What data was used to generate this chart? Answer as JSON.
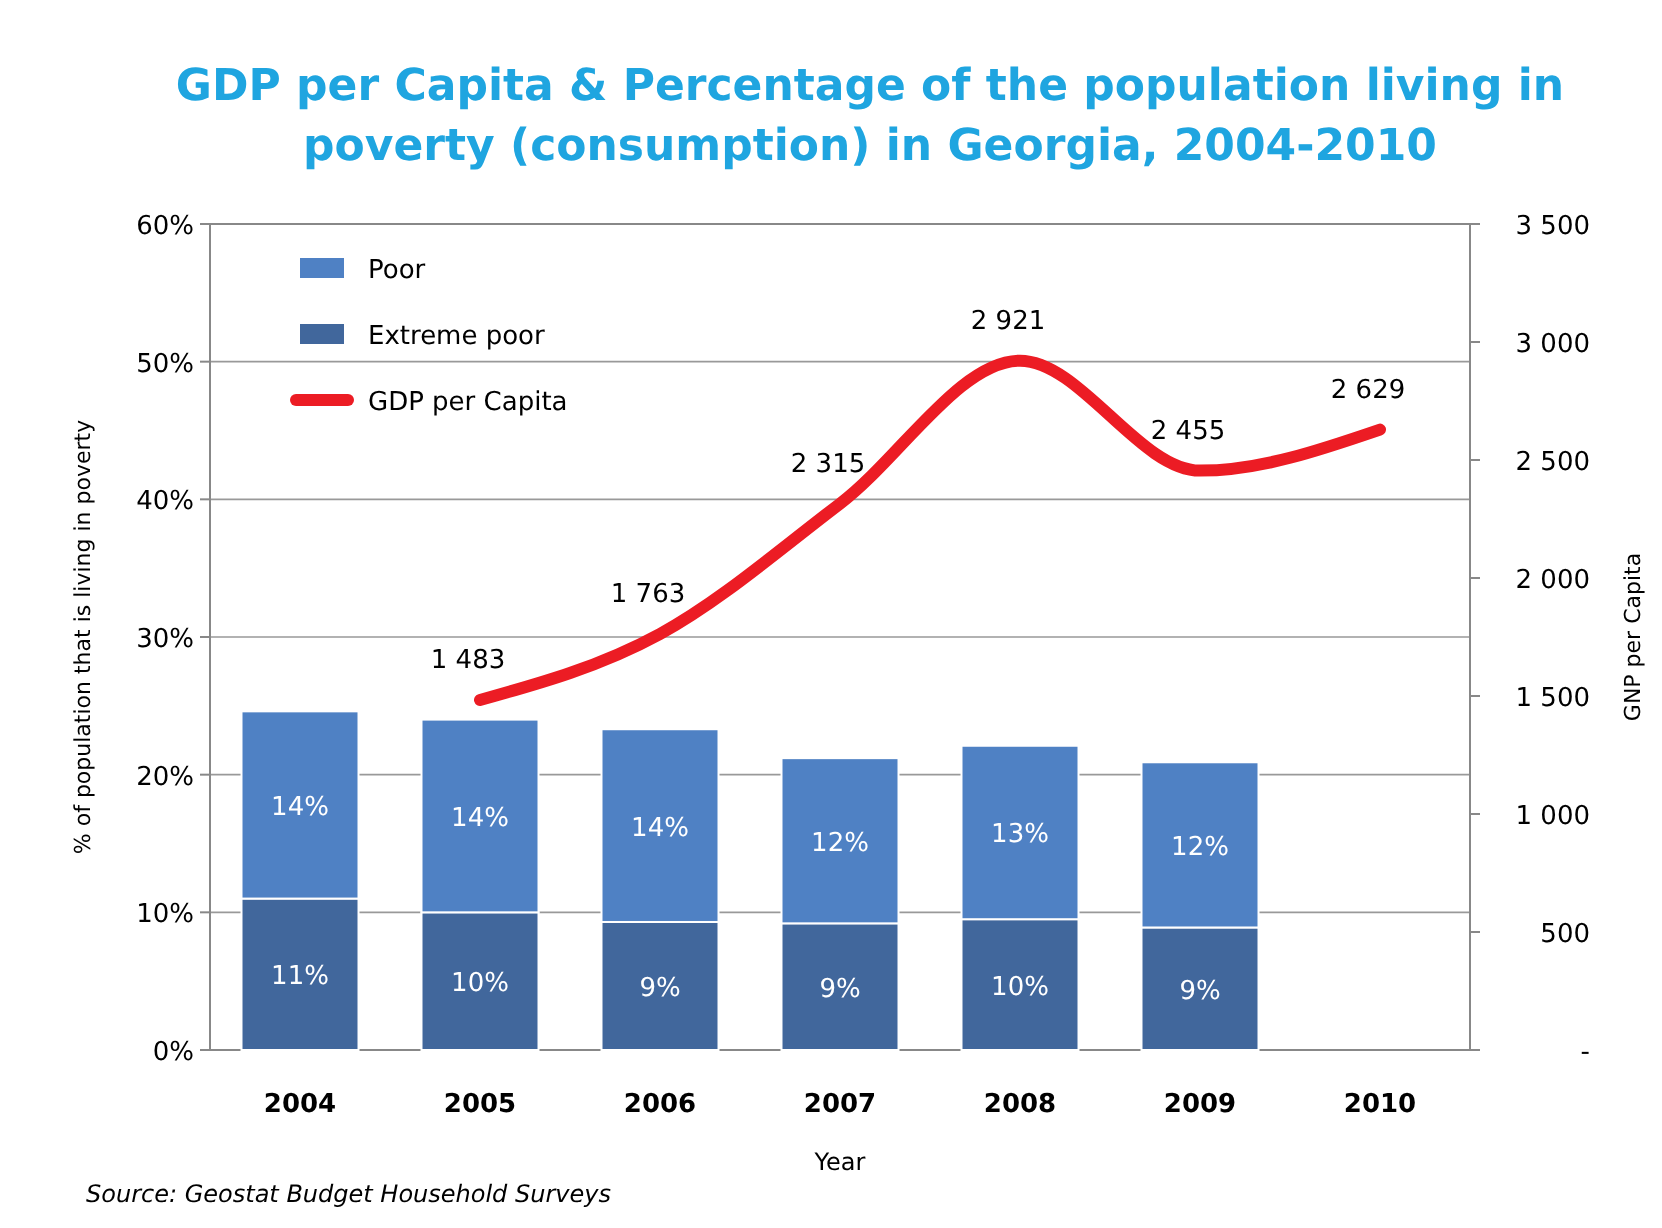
{
  "chart_data": {
    "type": "bar",
    "title": "GDP per Capita & Percentage of the population living in poverty (consumption) in Georgia, 2004-2010",
    "categories": [
      "2004",
      "2005",
      "2006",
      "2007",
      "2008",
      "2009",
      "2010"
    ],
    "stacked": true,
    "xlabel": "Year",
    "ylabel": "% of population that is living in poverty",
    "y2label": "GNP per Capita",
    "ylim": [
      0,
      60
    ],
    "yticks": [
      {
        "value": 0,
        "label": "0%"
      },
      {
        "value": 10,
        "label": "10%"
      },
      {
        "value": 20,
        "label": "20%"
      },
      {
        "value": 30,
        "label": "30%"
      },
      {
        "value": 40,
        "label": "40%"
      },
      {
        "value": 50,
        "label": "50%"
      },
      {
        "value": 60,
        "label": "60%"
      }
    ],
    "y2lim": [
      0,
      3500
    ],
    "y2ticks": [
      {
        "value": 0,
        "label": "-"
      },
      500,
      {
        "value": 1000,
        "label": "1 000"
      },
      {
        "value": 1500,
        "label": "1 500"
      },
      {
        "value": 2000,
        "label": "2 000"
      },
      {
        "value": 2500,
        "label": "2 500"
      },
      {
        "value": 3000,
        "label": "3 000"
      },
      {
        "value": 3500,
        "label": "3 500"
      }
    ],
    "grid": "y",
    "legend": "top left",
    "series": [
      {
        "name": "Extreme poor",
        "color": "#41679c",
        "values": [
          11.0,
          10.0,
          9.3,
          9.2,
          9.5,
          8.9,
          null
        ],
        "value_labels": [
          "11%",
          "10%",
          "9%",
          "9%",
          "10%",
          "9%",
          null
        ]
      },
      {
        "name": "Poor",
        "color": "#4f81c4",
        "values": [
          13.6,
          14.0,
          14.0,
          12.0,
          12.6,
          12.0,
          null
        ],
        "value_labels": [
          "14%",
          "14%",
          "14%",
          "12%",
          "13%",
          "12%",
          null
        ]
      },
      {
        "name": "GDP per Capita",
        "type": "line",
        "axis": "y2",
        "color": "#ec1c24",
        "line_style": "solid",
        "marker": "none",
        "values": [
          null,
          1483,
          1763,
          2315,
          2921,
          2455,
          2629
        ],
        "value_labels": [
          null,
          "1 483",
          "1 763",
          "2 315",
          "2 921",
          "2 455",
          "2 629"
        ]
      }
    ],
    "annotations": [
      "Source: Geostat Budget Household Surveys"
    ]
  }
}
